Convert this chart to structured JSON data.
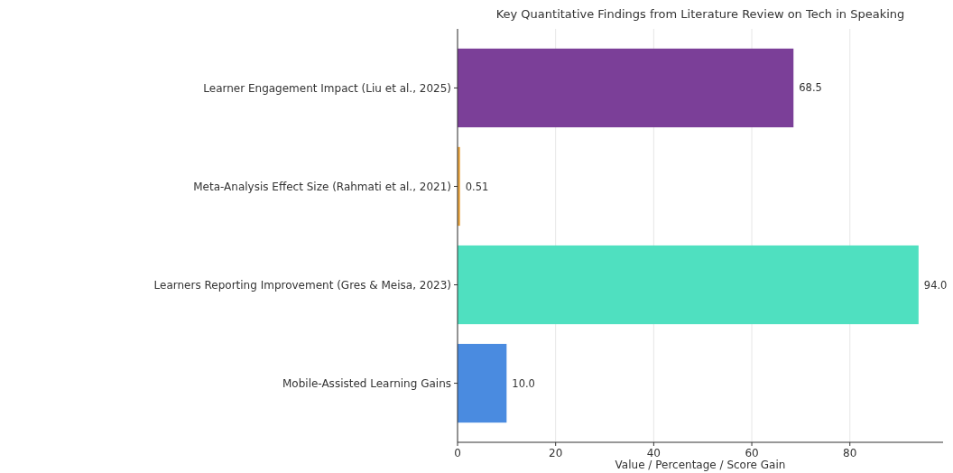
{
  "chart_data": {
    "type": "bar",
    "orientation": "horizontal",
    "title": "Key Quantitative Findings from Literature Review on Tech in Speaking",
    "xlabel": "Value / Percentage / Score Gain",
    "categories": [
      "Learner Engagement Impact (Liu et al., 2025)",
      "Meta-Analysis Effect Size (Rahmati et al., 2021)",
      "Learners Reporting Improvement (Gres & Meisa, 2023)",
      "Mobile-Assisted Learning Gains"
    ],
    "values": [
      68.5,
      0.51,
      94.0,
      10.0
    ],
    "colors": [
      "#7b3f98",
      "#e8a33d",
      "#4fe0c0",
      "#4a8be0"
    ],
    "value_labels": [
      "68.5",
      "0.51",
      "94.0",
      "10.0"
    ],
    "xlim": [
      0,
      99
    ],
    "xticks": [
      0,
      20,
      40,
      60,
      80
    ],
    "grid": "x"
  }
}
